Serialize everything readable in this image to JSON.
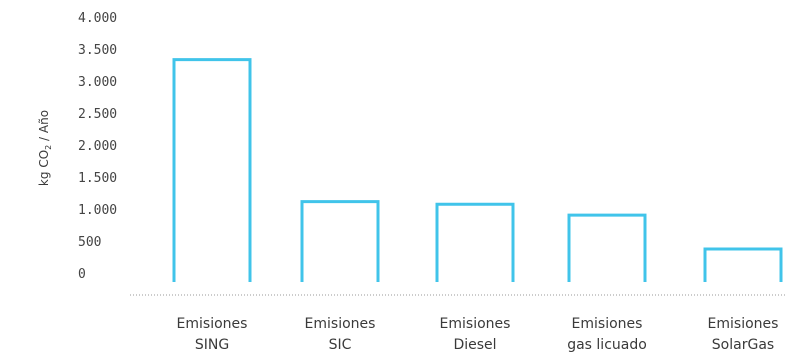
{
  "chart_data": {
    "type": "bar",
    "categories": [
      [
        "Emisiones",
        "SING"
      ],
      [
        "Emisiones",
        "SIC"
      ],
      [
        "Emisiones",
        "Diesel"
      ],
      [
        "Emisiones",
        "gas licuado"
      ],
      [
        "Emisiones",
        "SolarGas"
      ]
    ],
    "values": [
      3350,
      1130,
      1090,
      920,
      390
    ],
    "ylim": [
      0,
      4000
    ],
    "yticks": [
      0,
      500,
      1000,
      1500,
      2000,
      2500,
      3000,
      3500,
      4000
    ],
    "ytick_labels": [
      "0",
      "500",
      "1.000",
      "1.500",
      "2.000",
      "2.500",
      "3.000",
      "3.500",
      "4.000"
    ],
    "ylabel": {
      "before": "kg CO",
      "subscript": "2",
      "after": " / Año"
    },
    "xlabel": "",
    "title": "",
    "grid": false,
    "bar_style": "outline",
    "bar_color": "#40c4ea",
    "baseline_style": "dotted",
    "baseline_color": "#999999"
  }
}
